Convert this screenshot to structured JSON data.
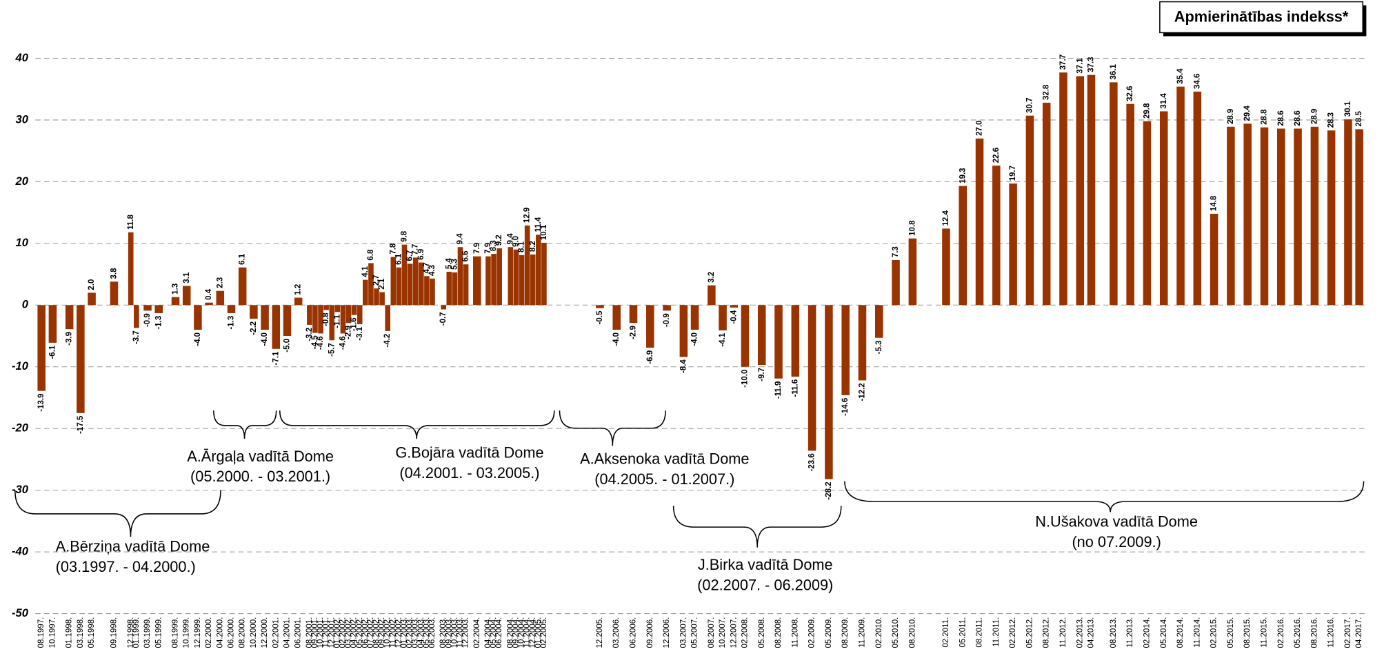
{
  "chart_data": {
    "type": "bar",
    "title": "Apmierinātības indekss*",
    "color": "#993300",
    "ylim": [
      -50,
      40
    ],
    "yticks": [
      -50,
      -40,
      -30,
      -20,
      -10,
      0,
      10,
      20,
      30,
      40
    ],
    "grid": true,
    "x": [
      "08.1997.",
      "10.1997.",
      "01.1998.",
      "03.1998.",
      "05.1998.",
      "09.1998.",
      "12.1998.",
      "01.1999.",
      "03.1999.",
      "05.1999.",
      "08.1999.",
      "10.1999.",
      "12.1999.",
      "02.2000.",
      "04.2000.",
      "06.2000.",
      "08.2000.",
      "10.2000.",
      "12.2000.",
      "02.2001.",
      "04.2001.",
      "06.2001.",
      "08.2001.",
      "09.2001.",
      "10.2001.",
      "11.2001.",
      "12.2001.",
      "01.2002.",
      "02.2002.",
      "03.2002.",
      "04.2002.",
      "05.2002.",
      "06.2002.",
      "07.2002.",
      "08.2002.",
      "09.2002.",
      "10.2002.",
      "11.2002.",
      "12.2002.",
      "01.2003.",
      "02.2003.",
      "03.2003.",
      "04.2003.",
      "05.2003.",
      "06.2003.",
      "08.2003.",
      "09.2003.",
      "10.2003.",
      "11.2003.",
      "12.2003.",
      "02.2004.",
      "04.2004.",
      "05.2004.",
      "06.2004.",
      "08.2004.",
      "09.2004.",
      "10.2004.",
      "11.2004.",
      "12.2004.",
      "01.2005.",
      "02.2005.",
      "12.2005.",
      "03.2006.",
      "06.2006.",
      "09.2006.",
      "12.2006.",
      "03.2007.",
      "05.2007.",
      "08.2007.",
      "10.2007.",
      "12.2007.",
      "02.2008.",
      "05.2008.",
      "08.2008.",
      "11.2008.",
      "02.2009.",
      "05.2009.",
      "08.2009.",
      "11.2009.",
      "02.2010.",
      "05.2010.",
      "08.2010.",
      "02.2011.",
      "05.2011.",
      "08.2011.",
      "11.2011.",
      "02.2012.",
      "05.2012.",
      "08.2012.",
      "11.2012.",
      "02.2013.",
      "04.2013.",
      "08.2013.",
      "11.2013.",
      "02.2014.",
      "05.2014.",
      "08.2014.",
      "11.2014.",
      "02.2015.",
      "05.2015.",
      "08.2015.",
      "11.2015.",
      "02.2016.",
      "05.2016.",
      "08.2016.",
      "11.2016.",
      "02.2017.",
      "04.2017."
    ],
    "values": [
      -13.9,
      -6.1,
      -3.9,
      -17.5,
      2.0,
      3.8,
      11.8,
      -3.7,
      -0.9,
      -1.3,
      1.3,
      3.1,
      -4.0,
      0.4,
      2.3,
      -1.3,
      6.1,
      -2.2,
      -4.0,
      -7.1,
      -5.0,
      1.2,
      -3.2,
      -4.5,
      -4.6,
      -0.8,
      -5.7,
      -1.1,
      -4.6,
      -2.9,
      -1.6,
      -3.1,
      4.1,
      6.8,
      2.7,
      2.1,
      -4.2,
      7.8,
      6.1,
      9.8,
      6.7,
      7.7,
      6.9,
      4.7,
      4.3,
      -0.7,
      5.4,
      5.3,
      9.4,
      6.6,
      7.9,
      7.9,
      8.3,
      9.2,
      9.4,
      9.0,
      8.1,
      12.9,
      8.2,
      11.4,
      10.1,
      -0.5,
      -4.0,
      -2.9,
      -6.9,
      -0.9,
      -8.4,
      -4.0,
      3.2,
      -4.1,
      -0.4,
      -10.0,
      -9.7,
      -11.9,
      -11.6,
      -23.6,
      -28.2,
      -14.6,
      -12.2,
      -5.3,
      7.3,
      10.8,
      12.4,
      19.3,
      27.0,
      22.6,
      19.7,
      30.7,
      32.8,
      37.7,
      37.1,
      37.3,
      36.1,
      32.6,
      29.8,
      31.4,
      35.4,
      34.6,
      14.8,
      28.9,
      29.4,
      28.8,
      28.6,
      28.6,
      28.9,
      28.3,
      30.1,
      28.5
    ],
    "value_labels": [
      "-13.9",
      "-6.1",
      "-3.9",
      "-17.5",
      "2.0",
      "3.8",
      "11.8",
      "-3.7",
      "-0.9",
      "-1.3",
      "1.3",
      "3.1",
      "-4.0",
      "0.4",
      "2.3",
      "-1.3",
      "6.1",
      "-2.2",
      "-4.0",
      "-7.1",
      "-5.0",
      "1.2",
      "-3.2",
      "-4.5",
      "-4.6",
      "-0.8",
      "-5.7",
      "-1.1",
      "-4.6",
      "-2.9",
      "-1.6",
      "-3.1",
      "4.1",
      "6.8",
      "2.7",
      "2.1",
      "-4.2",
      "7.8",
      "6.1",
      "9.8",
      "6.7",
      "7.7",
      "6.9",
      "4.7",
      "4.3",
      "-0.7",
      "5.4",
      "5.3",
      "9.4",
      "6.6",
      "7.9",
      "7.9",
      "8.3",
      "9.2",
      "9.4",
      "9.0",
      "8.1",
      "12.9",
      "8.2",
      "11.4",
      "10.1",
      "-0.5",
      "-4.0",
      "-2.9",
      "-6.9",
      "-0.9",
      "-8.4",
      "-4.0",
      "3.2",
      "-4.1",
      "-0.4",
      "-10.0",
      "-9.7",
      "-11.9",
      "-11.6",
      "-23.6",
      "-28.2",
      "-14.6",
      "-12.2",
      "-5.3",
      "7.3",
      "10.8",
      "12.4",
      "19.3",
      "27.0",
      "22.6",
      "19.7",
      "30.7",
      "32.8",
      "37.7",
      "37.1",
      "37.3",
      "36.1",
      "32.6",
      "29.8",
      "31.4",
      "35.4",
      "34.6",
      "14.8",
      "28.9",
      "29.4",
      "28.8",
      "28.6",
      "28.6",
      "28.9",
      "28.3",
      "30.1",
      "28.5"
    ],
    "annotations": [
      {
        "label": "A.Bērziņa vadītā Dome",
        "period": "(03.1997. - 04.2000.)"
      },
      {
        "label": "A.Ārgaļa vadītā Dome",
        "period": "(05.2000. - 03.2001.)"
      },
      {
        "label": "G.Bojāra vadītā Dome",
        "period": "(04.2001. - 03.2005.)"
      },
      {
        "label": "A.Aksenoka vadītā Dome",
        "period": "(04.2005. - 01.2007.)"
      },
      {
        "label": "J.Birka vadītā Dome",
        "period": "(02.2007. - 06.2009)"
      },
      {
        "label": "N.Ušakova vadītā Dome",
        "period": "(no 07.2009.)"
      }
    ]
  }
}
